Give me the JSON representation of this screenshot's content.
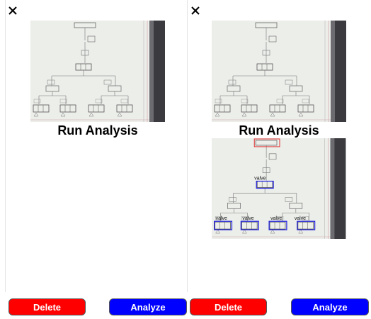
{
  "panels": [
    {
      "close_icon": "close-icon",
      "heading": "Run Analysis",
      "delete_label": "Delete",
      "analyze_label": "Analyze"
    },
    {
      "close_icon": "close-icon",
      "heading": "Run Analysis",
      "delete_label": "Delete",
      "analyze_label": "Analyze",
      "detections": [
        {
          "label": "",
          "color": "#e03030"
        },
        {
          "label": "valve",
          "color": "#1a1adf"
        },
        {
          "label": "valve",
          "color": "#1a1adf"
        },
        {
          "label": "valve",
          "color": "#1a1adf"
        },
        {
          "label": "valve",
          "color": "#1a1adf"
        },
        {
          "label": "valve",
          "color": "#1a1adf"
        }
      ]
    }
  ],
  "colors": {
    "delete": "#ff0000",
    "analyze": "#0000ff"
  }
}
